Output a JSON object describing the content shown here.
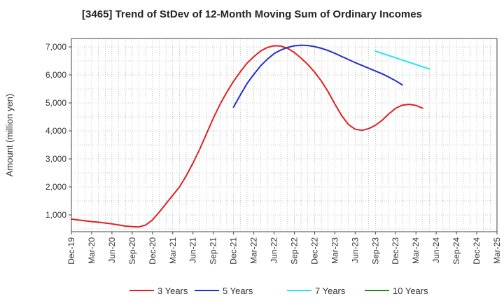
{
  "chart_data": {
    "type": "line",
    "title": "[3465]  Trend of StDev of 12-Month Moving Sum of Ordinary Incomes",
    "xlabel": "",
    "ylabel": "Amount (million yen)",
    "ylim": [
      400,
      7300
    ],
    "yticks": [
      1000,
      2000,
      3000,
      4000,
      5000,
      6000,
      7000
    ],
    "ytick_labels": [
      "1,000",
      "2,000",
      "3,000",
      "4,000",
      "5,000",
      "6,000",
      "7,000"
    ],
    "x_categories": [
      "Dec-19",
      "Mar-20",
      "Jun-20",
      "Sep-20",
      "Dec-20",
      "Mar-21",
      "Jun-21",
      "Sep-21",
      "Dec-21",
      "Mar-22",
      "Jun-22",
      "Sep-22",
      "Dec-22",
      "Mar-23",
      "Jun-23",
      "Sep-23",
      "Dec-23",
      "Mar-24",
      "Jun-24",
      "Sep-24",
      "Dec-24",
      "Mar-25"
    ],
    "grid": true,
    "legend_position": "bottom",
    "series": [
      {
        "name": "3 Years",
        "color": "#e02020",
        "start_index": 0,
        "values": [
          850,
          820,
          790,
          760,
          740,
          710,
          680,
          640,
          600,
          580,
          570,
          640,
          820,
          1100,
          1400,
          1700,
          2000,
          2400,
          2850,
          3350,
          3900,
          4450,
          4950,
          5380,
          5770,
          6110,
          6420,
          6650,
          6850,
          6980,
          7040,
          7030,
          6950,
          6800,
          6600,
          6370,
          6100,
          5780,
          5400,
          4960,
          4550,
          4230,
          4060,
          4020,
          4080,
          4200,
          4380,
          4610,
          4810,
          4920,
          4950,
          4910,
          4810
        ]
      },
      {
        "name": "5 Years",
        "color": "#1f2fcf",
        "start_index": 24,
        "values": [
          4850,
          5280,
          5690,
          6020,
          6320,
          6560,
          6760,
          6890,
          6980,
          7040,
          7060,
          7050,
          7010,
          6950,
          6870,
          6770,
          6660,
          6550,
          6440,
          6340,
          6240,
          6140,
          6040,
          5920,
          5790,
          5640
        ]
      },
      {
        "name": "7 Years",
        "color": "#22e5ef",
        "start_index": 45,
        "values": [
          6850,
          6770,
          6690,
          6610,
          6530,
          6450,
          6370,
          6290,
          6210
        ]
      },
      {
        "name": "10 Years",
        "color": "#1f8a1f",
        "start_index": 0,
        "values": []
      }
    ]
  }
}
